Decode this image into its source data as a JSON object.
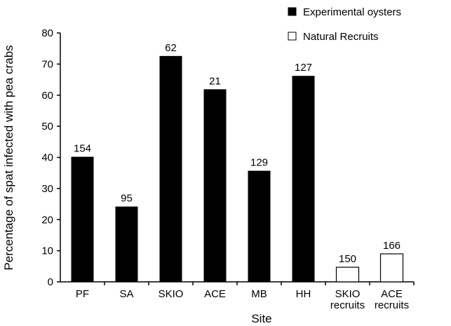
{
  "chart_data": {
    "type": "bar",
    "xlabel": "Site",
    "ylabel": "Percentage of spat infected with pea crabs",
    "ylim": [
      0,
      80
    ],
    "yticks": [
      0,
      10,
      20,
      30,
      40,
      50,
      60,
      70,
      80
    ],
    "grid": false,
    "legend_position": "top-right",
    "legend": [
      {
        "label": "Experimental oysters",
        "fill": "#000000"
      },
      {
        "label": "Natural Recruits",
        "fill": "#ffffff"
      }
    ],
    "categories": [
      {
        "lines": [
          "PF"
        ]
      },
      {
        "lines": [
          "SA"
        ]
      },
      {
        "lines": [
          "SKIO"
        ]
      },
      {
        "lines": [
          "ACE"
        ]
      },
      {
        "lines": [
          "MB"
        ]
      },
      {
        "lines": [
          "HH"
        ]
      },
      {
        "lines": [
          "SKIO",
          "recruits"
        ]
      },
      {
        "lines": [
          "ACE",
          "recruits"
        ]
      }
    ],
    "values": [
      40.2,
      24.2,
      72.6,
      61.9,
      35.7,
      66.2,
      4.7,
      9.0
    ],
    "sample_sizes": [
      "154",
      "95",
      "62",
      "21",
      "129",
      "127",
      "150",
      "166"
    ],
    "series_group": [
      0,
      0,
      0,
      0,
      0,
      0,
      1,
      1
    ]
  }
}
